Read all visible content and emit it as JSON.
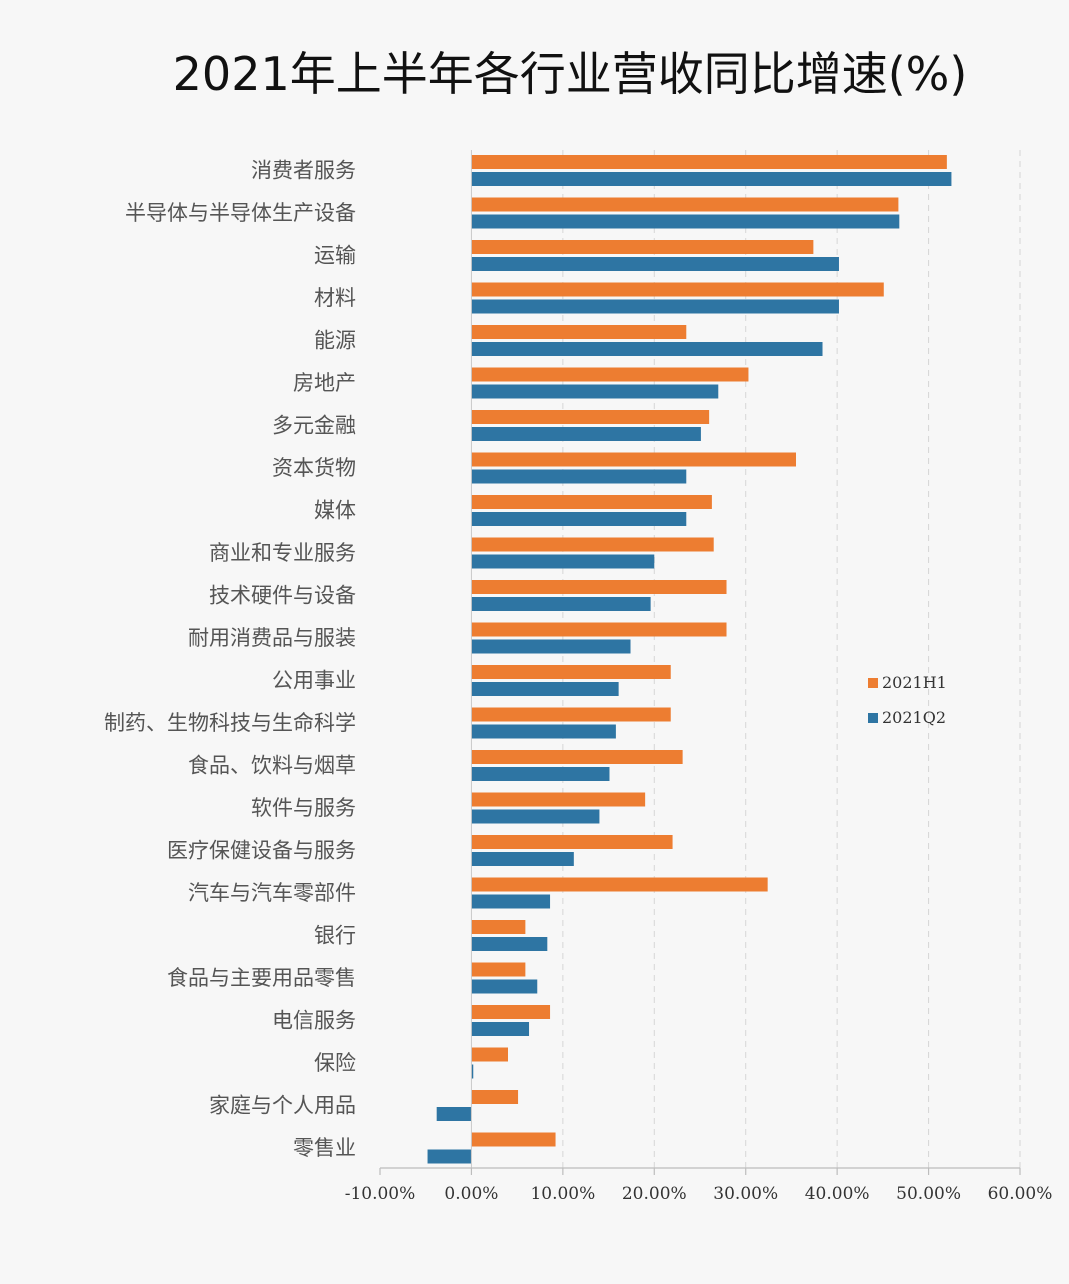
{
  "chart_data": {
    "type": "bar",
    "orientation": "horizontal",
    "title": "2021年上半年各行业营收同比增速(%)",
    "categories": [
      "消费者服务",
      "半导体与半导体生产设备",
      "运输",
      "材料",
      "能源",
      "房地产",
      "多元金融",
      "资本货物",
      "媒体",
      "商业和专业服务",
      "技术硬件与设备",
      "耐用消费品与服装",
      "公用事业",
      "制药、生物科技与生命科学",
      "食品、饮料与烟草",
      "软件与服务",
      "医疗保健设备与服务",
      "汽车与汽车零部件",
      "银行",
      "食品与主要用品零售",
      "电信服务",
      "保险",
      "家庭与个人用品",
      "零售业"
    ],
    "series": [
      {
        "name": "2021H1",
        "color": "#ed7d31",
        "values": [
          52.0,
          46.7,
          37.4,
          45.1,
          23.5,
          30.3,
          26.0,
          35.5,
          26.3,
          26.5,
          27.9,
          27.9,
          21.8,
          21.8,
          23.1,
          19.0,
          22.0,
          32.4,
          5.9,
          5.9,
          8.6,
          4.0,
          5.1,
          9.2
        ]
      },
      {
        "name": "2021Q2",
        "color": "#2e75a3",
        "values": [
          52.5,
          46.8,
          40.2,
          40.2,
          38.4,
          27.0,
          25.1,
          23.5,
          23.5,
          20.0,
          19.6,
          17.4,
          16.1,
          15.8,
          15.1,
          14.0,
          11.2,
          8.6,
          8.3,
          7.2,
          6.3,
          0.2,
          -3.8,
          -4.8
        ]
      }
    ],
    "xlim": [
      -10,
      60
    ],
    "xticks": [
      -10,
      0,
      10,
      20,
      30,
      40,
      50,
      60
    ],
    "xtick_labels": [
      "-10.00%",
      "0.00%",
      "10.00%",
      "20.00%",
      "30.00%",
      "40.00%",
      "50.00%",
      "60.00%"
    ],
    "xlabel": "",
    "ylabel": "",
    "grid": "vertical-dashed",
    "legend_position": "right"
  }
}
